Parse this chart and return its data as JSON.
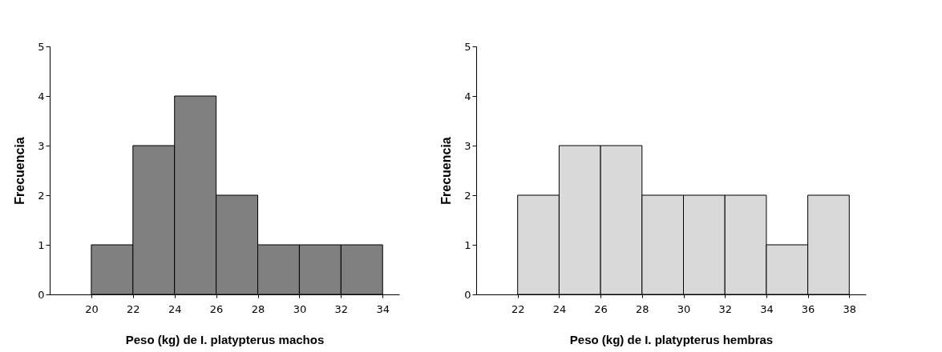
{
  "chart_data": [
    {
      "type": "histogram",
      "xlabel": "Peso (kg) de I. platypterus machos",
      "ylabel": "Frecuencia",
      "bins": [
        20,
        22,
        24,
        26,
        28,
        30,
        32,
        34
      ],
      "values": [
        1,
        3,
        4,
        2,
        1,
        1,
        1
      ],
      "color": "#808080",
      "xlim": [
        18,
        34.8
      ],
      "xticks": [
        20,
        22,
        24,
        26,
        28,
        30,
        32,
        34
      ],
      "ylim": [
        0,
        5
      ],
      "yticks": [
        0,
        1,
        2,
        3,
        4,
        5
      ]
    },
    {
      "type": "histogram",
      "xlabel": "Peso (kg) de I. platypterus hembras",
      "ylabel": "Frecuencia",
      "bins": [
        22,
        24,
        26,
        28,
        30,
        32,
        34,
        36,
        38
      ],
      "values": [
        2,
        3,
        3,
        2,
        2,
        2,
        1,
        2
      ],
      "color": "#d9d9d9",
      "xlim": [
        20,
        38.8
      ],
      "xticks": [
        22,
        24,
        26,
        28,
        30,
        32,
        34,
        36,
        38
      ],
      "ylim": [
        0,
        5
      ],
      "yticks": [
        0,
        1,
        2,
        3,
        4,
        5
      ]
    }
  ]
}
